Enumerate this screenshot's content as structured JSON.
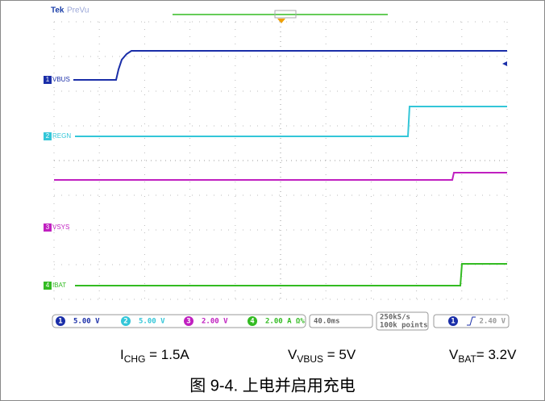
{
  "scope": {
    "brand": "Tek",
    "mode": "PreVu",
    "channels": [
      {
        "number": "1",
        "label": "VBUS",
        "scale": "5.00 V",
        "color": "#1a2ea8"
      },
      {
        "number": "2",
        "label": "REGN",
        "scale": "5.00 V",
        "color": "#33c6d8"
      },
      {
        "number": "3",
        "label": "VSYS",
        "scale": "2.00 V",
        "color": "#c020c0"
      },
      {
        "number": "4",
        "label": "IBAT",
        "scale": "2.00 A Ω%",
        "color": "#33bb22"
      }
    ],
    "timebase": "40.0ms",
    "sample_rate": "250kS/s",
    "record_length": "100k points",
    "trigger_channel": "1",
    "trigger_level": "2.40 V"
  },
  "captions": [
    {
      "main": "I",
      "sub": "CHG",
      "rest": " = 1.5A"
    },
    {
      "main": "V",
      "sub": "VBUS",
      "rest": " = 5V"
    },
    {
      "main": "V",
      "sub": "BAT",
      "rest": "= 3.2V"
    }
  ],
  "figure_title": "图 9-4. 上电并启用充电"
}
